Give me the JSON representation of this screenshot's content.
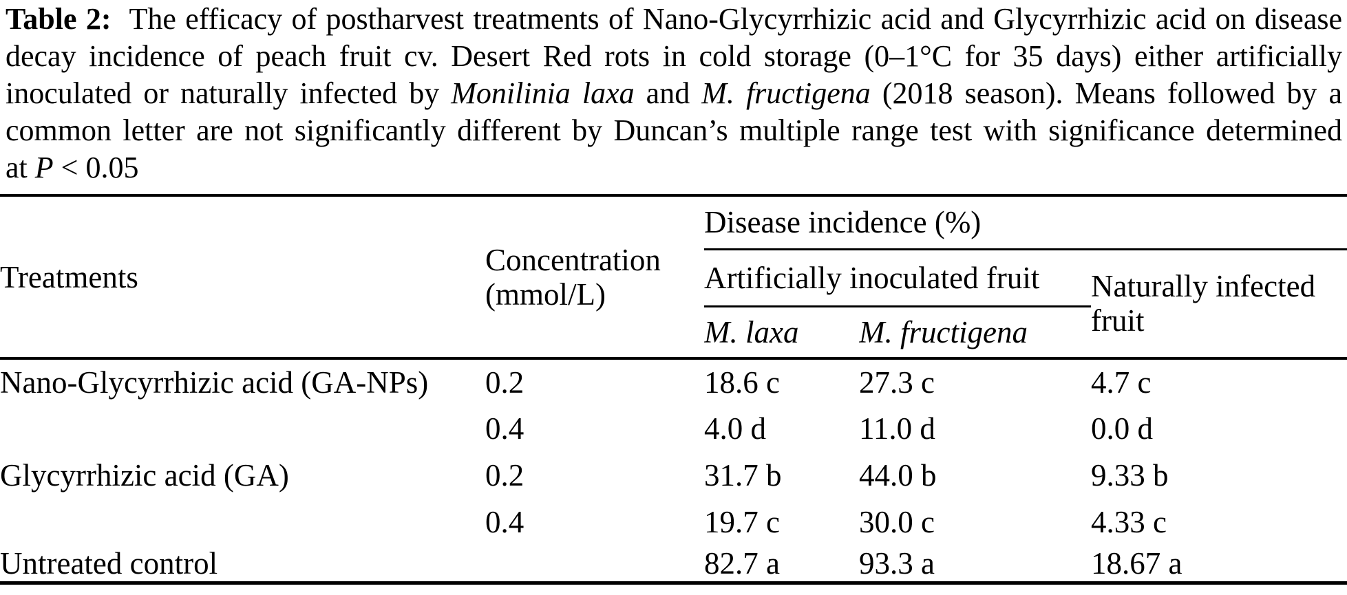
{
  "caption": {
    "lines": [
      [
        {
          "t": "Table 2:",
          "s": "b"
        },
        {
          "t": "  The efficacy of postharvest treatments of Nano-Glycyrrhizic acid and Glycyrrhizic acid on disease",
          "s": ""
        }
      ],
      [
        {
          "t": "decay incidence of peach fruit cv. Desert Red rots in cold storage (0–1°C for 35 days) either artificially",
          "s": ""
        }
      ],
      [
        {
          "t": "inoculated or naturally infected by ",
          "s": ""
        },
        {
          "t": "Monilinia laxa",
          "s": "i"
        },
        {
          "t": " and ",
          "s": ""
        },
        {
          "t": "M. fructigena",
          "s": "i"
        },
        {
          "t": " (2018 season). Means followed by a",
          "s": ""
        }
      ],
      [
        {
          "t": "common letter are not significantly different by Duncan’s multiple range test with significance determined",
          "s": ""
        }
      ],
      [
        {
          "t": "at ",
          "s": ""
        },
        {
          "t": "P",
          "s": "i"
        },
        {
          "t": " < 0.05",
          "s": ""
        }
      ]
    ]
  },
  "table": {
    "headers": {
      "treatments": "Treatments",
      "concentration": "Concentration (mmol/L)",
      "disease_incidence": "Disease incidence (%)",
      "artificially_inoculated": "Artificially inoculated fruit",
      "naturally_infected": "Naturally infected fruit",
      "m_laxa": "M. laxa",
      "m_fructigena": "M. fructigena"
    },
    "rows": [
      {
        "treatment": "Nano-Glycyrrhizic acid (GA-NPs)",
        "concentration": "0.2",
        "m_laxa": "18.6 c",
        "m_fructigena": "27.3 c",
        "naturally": "4.7 c"
      },
      {
        "treatment": "",
        "concentration": "0.4",
        "m_laxa": "4.0 d",
        "m_fructigena": "11.0 d",
        "naturally": "0.0 d"
      },
      {
        "treatment": "Glycyrrhizic acid (GA)",
        "concentration": "0.2",
        "m_laxa": "31.7 b",
        "m_fructigena": "44.0 b",
        "naturally": "9.33 b"
      },
      {
        "treatment": "",
        "concentration": "0.4",
        "m_laxa": "19.7 c",
        "m_fructigena": "30.0 c",
        "naturally": "4.33 c"
      },
      {
        "treatment": "Untreated control",
        "concentration": "",
        "m_laxa": "82.7 a",
        "m_fructigena": "93.3 a",
        "naturally": "18.67 a"
      }
    ]
  },
  "colors": {
    "text": "#000000",
    "background": "#ffffff",
    "rule": "#000000"
  }
}
